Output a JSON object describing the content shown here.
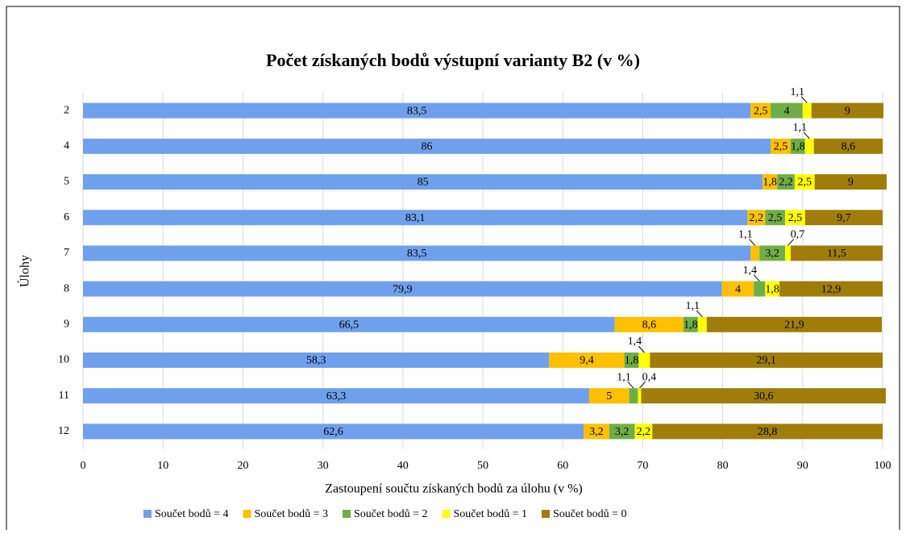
{
  "chart_data": {
    "type": "stacked-bar-horizontal",
    "title": "Počet získaných  bodů výstupní varianty B2 (v %)",
    "xlabel": "Zastoupení součtu získaných  bodů za úlohu (v %)",
    "ylabel": "Úlohy",
    "categories": [
      "2",
      "4",
      "5",
      "6",
      "7",
      "8",
      "9",
      "10",
      "11",
      "12"
    ],
    "series": [
      {
        "name": "Součet bodů = 4",
        "color": "#6fa0ec",
        "values": [
          83.5,
          86,
          85,
          83.1,
          83.5,
          79.9,
          66.5,
          58.3,
          63.3,
          62.6
        ],
        "value_labels": [
          "83,5",
          "86",
          "85",
          "83,1",
          "83,5",
          "79,9",
          "66,5",
          "58,3",
          "63,3",
          "62,6"
        ]
      },
      {
        "name": "Součet bodů = 3",
        "color": "#ffc000",
        "values": [
          2.5,
          2.5,
          1.8,
          2.2,
          1.1,
          4,
          8.6,
          9.4,
          5,
          3.2
        ],
        "value_labels": [
          "2,5",
          "2,5",
          "1,8",
          "2,2",
          "1,1",
          "4",
          "8,6",
          "9,4",
          "5",
          "3,2"
        ]
      },
      {
        "name": "Součet bodů = 2",
        "color": "#70ad47",
        "values": [
          4,
          1.8,
          2.2,
          2.5,
          3.2,
          1.4,
          1.8,
          1.8,
          1.1,
          3.2
        ],
        "value_labels": [
          "4",
          "1,8",
          "2,2",
          "2,5",
          "3,2",
          "1,4",
          "1,8",
          "1,8",
          "1,1",
          "3,2"
        ]
      },
      {
        "name": "Součet bodů = 1",
        "color": "#ffff00",
        "values": [
          1.1,
          1.1,
          2.5,
          2.5,
          0.7,
          1.8,
          1.1,
          1.4,
          0.4,
          2.2
        ],
        "value_labels": [
          "1,1",
          "1,1",
          "2,5",
          "2,5",
          "0,7",
          "1,8",
          "1,1",
          "1,4",
          "0,4",
          "2,2"
        ]
      },
      {
        "name": "Součet bodů = 0",
        "color": "#a07d0a",
        "values": [
          9,
          8.6,
          9,
          9.7,
          11.5,
          12.9,
          21.9,
          29.1,
          30.6,
          28.8
        ],
        "value_labels": [
          "9",
          "8,6",
          "9",
          "9,7",
          "11,5",
          "12,9",
          "21,9",
          "29,1",
          "30,6",
          "28,8"
        ]
      }
    ],
    "xlim": [
      0,
      100
    ],
    "xticks": [
      0,
      10,
      20,
      30,
      40,
      50,
      60,
      70,
      80,
      90,
      100
    ],
    "grid": true,
    "legend": "bottom"
  }
}
